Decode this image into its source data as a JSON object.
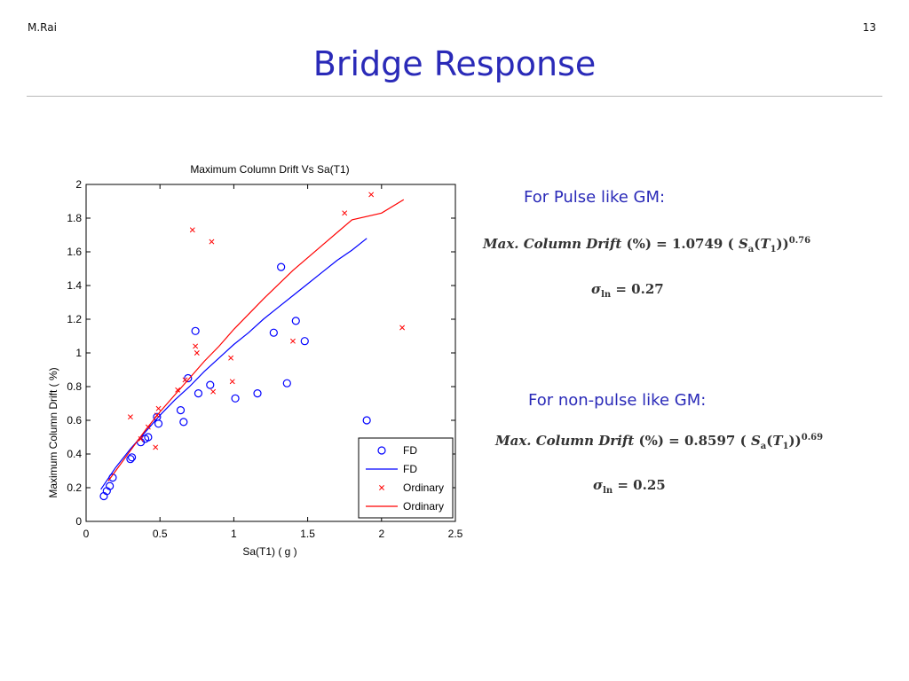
{
  "slide": {
    "author": "M.Rai",
    "page_number": "13",
    "title": "Bridge Response"
  },
  "right_panel": {
    "pulse_heading": "For Pulse like GM:",
    "pulse_equation": {
      "lhs": "Max. Column Drift",
      "unit": "(%)",
      "coef": "= 1.0749",
      "sa": "S",
      "sa_sub": "a",
      "t": "T",
      "t_sub": "1",
      "exp": "0.76",
      "sigma": "σ",
      "sigma_sub": "ln",
      "sigma_val": "= 0.27"
    },
    "nonpulse_heading": "For non-pulse like  GM:",
    "nonpulse_equation": {
      "lhs": "Max. Column Drift",
      "unit": "(%)",
      "coef": "= 0.8597",
      "sa": "S",
      "sa_sub": "a",
      "t": "T",
      "t_sub": "1",
      "exp": "0.69",
      "sigma": "σ",
      "sigma_sub": "ln",
      "sigma_val": "= 0.25"
    }
  },
  "chart_data": {
    "type": "scatter",
    "title": "Maximum Column Drift Vs Sa(T1)",
    "xlabel": "Sa(T1) ( g )",
    "ylabel": "Maximum Column Drift ( %)",
    "xlim": [
      0,
      2.5
    ],
    "ylim": [
      0,
      2
    ],
    "xticks": [
      "0",
      "0.5",
      "1",
      "1.5",
      "2",
      "2.5"
    ],
    "yticks": [
      "0",
      "0.2",
      "0.4",
      "0.6",
      "0.8",
      "1",
      "1.2",
      "1.4",
      "1.6",
      "1.8",
      "2"
    ],
    "grid": false,
    "legend_position": "bottom-right",
    "series": [
      {
        "name": "FD",
        "kind": "markers",
        "marker": "circle",
        "color": "#0000ff",
        "x": [
          0.12,
          0.14,
          0.16,
          0.18,
          0.3,
          0.31,
          0.37,
          0.4,
          0.42,
          0.48,
          0.49,
          0.64,
          0.66,
          0.69,
          0.74,
          0.76,
          0.84,
          1.01,
          1.16,
          1.27,
          1.32,
          1.36,
          1.42,
          1.48,
          1.9
        ],
        "y": [
          0.15,
          0.18,
          0.21,
          0.26,
          0.37,
          0.38,
          0.47,
          0.49,
          0.5,
          0.62,
          0.58,
          0.66,
          0.59,
          0.85,
          1.13,
          0.76,
          0.81,
          0.73,
          0.76,
          1.12,
          1.51,
          0.82,
          1.19,
          1.07,
          0.6
        ]
      },
      {
        "name": "FD",
        "kind": "line",
        "color": "#0000ff",
        "x": [
          0.1,
          0.2,
          0.3,
          0.4,
          0.5,
          0.6,
          0.7,
          0.8,
          0.9,
          1.0,
          1.1,
          1.2,
          1.3,
          1.4,
          1.5,
          1.6,
          1.7,
          1.8,
          1.9
        ],
        "y": [
          0.19,
          0.32,
          0.43,
          0.53,
          0.63,
          0.72,
          0.8,
          0.89,
          0.97,
          1.05,
          1.12,
          1.2,
          1.27,
          1.34,
          1.41,
          1.48,
          1.55,
          1.61,
          1.68
        ]
      },
      {
        "name": "Ordinary",
        "kind": "markers",
        "marker": "x",
        "color": "#ff0000",
        "x": [
          0.3,
          0.37,
          0.42,
          0.47,
          0.48,
          0.49,
          0.62,
          0.67,
          0.72,
          0.74,
          0.75,
          0.85,
          0.86,
          0.98,
          0.99,
          1.4,
          1.75,
          1.93,
          2.14
        ],
        "y": [
          0.62,
          0.49,
          0.56,
          0.44,
          0.63,
          0.67,
          0.78,
          0.84,
          1.73,
          1.04,
          1.0,
          1.66,
          0.77,
          0.97,
          0.83,
          1.07,
          1.83,
          1.94,
          1.15
        ]
      },
      {
        "name": "Ordinary",
        "kind": "line",
        "color": "#ff0000",
        "x": [
          0.15,
          0.2,
          0.3,
          0.4,
          0.5,
          0.6,
          0.7,
          0.8,
          0.9,
          1.0,
          1.2,
          1.4,
          1.6,
          1.8,
          2.0,
          2.15
        ],
        "y": [
          0.24,
          0.3,
          0.42,
          0.54,
          0.65,
          0.75,
          0.85,
          0.95,
          1.04,
          1.14,
          1.32,
          1.49,
          1.64,
          1.79,
          1.83,
          1.91
        ]
      }
    ]
  }
}
